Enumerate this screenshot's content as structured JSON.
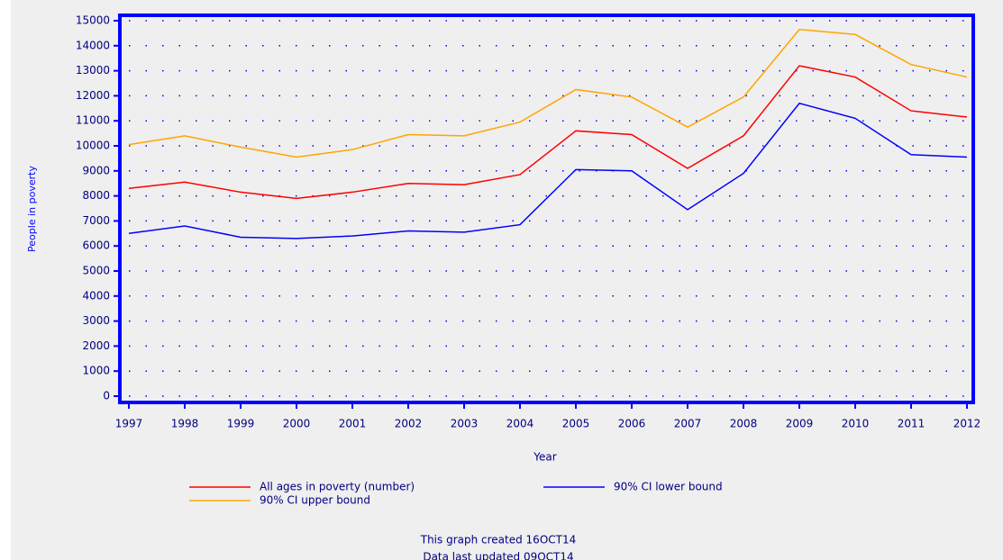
{
  "chart_data": {
    "type": "line",
    "ylabel": "People in poverty",
    "xlabel": "Year",
    "x": [
      1997,
      1998,
      1999,
      2000,
      2001,
      2002,
      2003,
      2004,
      2005,
      2006,
      2007,
      2008,
      2009,
      2010,
      2011,
      2012
    ],
    "xlim": [
      1997,
      2012
    ],
    "xticks": [
      1997,
      1998,
      1999,
      2000,
      2001,
      2002,
      2003,
      2004,
      2005,
      2006,
      2007,
      2008,
      2009,
      2010,
      2011,
      2012
    ],
    "ylim": [
      0,
      15000
    ],
    "yticks": [
      0,
      1000,
      2000,
      3000,
      4000,
      5000,
      6000,
      7000,
      8000,
      9000,
      10000,
      11000,
      12000,
      13000,
      14000,
      15000
    ],
    "grid": true,
    "series": [
      {
        "name": "All ages in poverty (number)",
        "color": "#ff0000",
        "values": [
          8300,
          8550,
          8150,
          7900,
          8150,
          8500,
          8450,
          8850,
          10600,
          10450,
          9100,
          10400,
          13200,
          12750,
          11400,
          11150
        ]
      },
      {
        "name": "90% CI lower bound",
        "color": "#0000ff",
        "values": [
          6500,
          6800,
          6350,
          6300,
          6400,
          6600,
          6550,
          6850,
          9050,
          9000,
          7450,
          8900,
          11700,
          11100,
          9650,
          9550
        ]
      },
      {
        "name": "90% CI upper bound",
        "color": "#ffa500",
        "values": [
          10050,
          10400,
          9950,
          9550,
          9850,
          10450,
          10400,
          10950,
          12250,
          11950,
          10750,
          11950,
          14650,
          14450,
          13250,
          12750
        ]
      }
    ],
    "annotations": [
      "This graph created 16OCT14",
      "Data last updated 09OCT14"
    ]
  }
}
